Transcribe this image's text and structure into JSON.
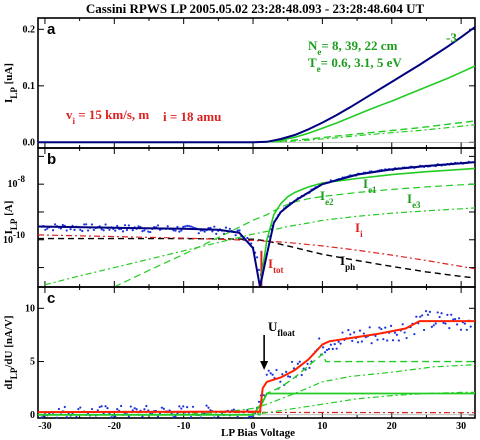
{
  "chart_data": {
    "type": "line",
    "title": "Cassini RPWS LP    2005.05.02   23:28:48.093 - 23:28:48.604 UT",
    "xlabel": "LP Bias Voltage",
    "xlim": [
      -31,
      32
    ],
    "xticks": [
      "-30",
      "-20",
      "-10",
      "0",
      "10",
      "20",
      "30"
    ],
    "colors": {
      "total": "#000080",
      "electron": "#22cc22",
      "ion": "#dd2222",
      "photo": "#000000",
      "data": "#1a33dd",
      "fit": "#ff2200"
    },
    "panels": [
      {
        "label": "a",
        "ylabel": "I_LP [uA]",
        "ylim": [
          -0.01,
          0.22
        ],
        "yticks": [
          "0.0",
          "0.1",
          "0.2"
        ],
        "annotations": [
          "Ne= 8, 39, 22 cm-3",
          "Te= 0.6, 3.1, 5 eV",
          "vi = 15 km/s, mi = 18 amu"
        ],
        "series": [
          {
            "name": "I_tot",
            "x": [
              -31,
              0,
              2,
              4,
              6,
              8,
              10,
              12,
              14,
              16,
              18,
              20,
              22,
              24,
              26,
              28,
              30,
              32
            ],
            "y": [
              0,
              0,
              0.001,
              0.006,
              0.013,
              0.023,
              0.035,
              0.048,
              0.062,
              0.077,
              0.092,
              0.107,
              0.122,
              0.137,
              0.153,
              0.169,
              0.186,
              0.204
            ]
          },
          {
            "name": "I_e1",
            "x": [
              -31,
              0,
              2,
              4,
              6,
              8,
              10,
              12,
              14,
              16,
              18,
              20,
              22,
              24,
              26,
              28,
              30,
              32
            ],
            "y": [
              0,
              0,
              0.001,
              0.004,
              0.009,
              0.016,
              0.025,
              0.034,
              0.044,
              0.054,
              0.064,
              0.073,
              0.083,
              0.093,
              0.103,
              0.113,
              0.124,
              0.135
            ]
          },
          {
            "name": "I_e2",
            "x": [
              -31,
              0,
              4,
              8,
              12,
              16,
              20,
              24,
              28,
              32
            ],
            "y": [
              0,
              0,
              0.002,
              0.006,
              0.011,
              0.016,
              0.021,
              0.026,
              0.032,
              0.038
            ]
          },
          {
            "name": "I_e3",
            "x": [
              -31,
              0,
              4,
              8,
              12,
              16,
              20,
              24,
              28,
              32
            ],
            "y": [
              0,
              0,
              0.001,
              0.004,
              0.008,
              0.013,
              0.017,
              0.021,
              0.026,
              0.031
            ]
          }
        ]
      },
      {
        "label": "b",
        "ylabel": "I_LP [A]",
        "yscale": "log",
        "ylim": [
          2e-12,
          2e-07
        ],
        "yticks": [
          "10-8",
          "10-10"
        ],
        "annotations": [
          "Ie1",
          "Ie2",
          "Ie3",
          "Ii",
          "Iph",
          "Itot"
        ],
        "series": [
          {
            "name": "I_tot",
            "x": [
              -31,
              -20,
              -10,
              -5,
              -2,
              0,
              1,
              2,
              3,
              4,
              6,
              8,
              10,
              15,
              20,
              25,
              30,
              32
            ],
            "y": [
              3e-10,
              2.7e-10,
              2.5e-10,
              2.3e-10,
              1.8e-10,
              5e-11,
              2e-12,
              3e-11,
              4e-10,
              1e-09,
              2.5e-09,
              5e-09,
              1e-08,
              2.2e-08,
              3.4e-08,
              4.5e-08,
              5.7e-08,
              6.2e-08
            ]
          },
          {
            "name": "I_e1",
            "x": [
              1,
              2,
              3,
              4,
              5,
              6,
              8,
              10,
              15,
              20,
              25,
              30,
              32
            ],
            "y": [
              2e-12,
              1e-10,
              8e-10,
              2e-09,
              3.5e-09,
              5e-09,
              8e-09,
              1.1e-08,
              1.6e-08,
              2.2e-08,
              2.8e-08,
              3.4e-08,
              3.7e-08
            ]
          },
          {
            "name": "I_e2",
            "x": [
              -20,
              -15,
              -10,
              -5,
              0,
              2,
              4,
              6,
              8,
              10,
              15,
              20,
              25,
              30,
              32
            ],
            "y": [
              2e-12,
              8e-12,
              3e-11,
              1.2e-10,
              5e-10,
              8e-10,
              1.5e-09,
              2.3e-09,
              3e-09,
              3.6e-09,
              5e-09,
              6.5e-09,
              8e-09,
              9.5e-09,
              1e-08
            ]
          },
          {
            "name": "I_e3",
            "x": [
              -30,
              -25,
              -20,
              -15,
              -10,
              -5,
              0,
              2,
              5,
              8,
              10,
              15,
              20,
              25,
              30,
              32
            ],
            "y": [
              2.4e-12,
              5e-12,
              1e-11,
              2e-11,
              4e-11,
              8e-11,
              1.6e-10,
              2e-10,
              3e-10,
              4e-10,
              5e-10,
              7e-10,
              9e-10,
              1.1e-09,
              1.3e-09,
              1.4e-09
            ]
          },
          {
            "name": "I_i",
            "x": [
              -31,
              -20,
              -10,
              0,
              5,
              10,
              15,
              20,
              25,
              30,
              32
            ],
            "y": [
              1.5e-10,
              1.3e-10,
              1.15e-10,
              9.5e-11,
              8e-11,
              6e-11,
              4.2e-11,
              2.8e-11,
              1.8e-11,
              1.1e-11,
              9e-12
            ]
          },
          {
            "name": "I_ph",
            "x": [
              -31,
              -20,
              -10,
              0,
              2,
              5,
              10,
              15,
              20,
              25,
              30,
              32
            ],
            "y": [
              1.1e-10,
              1.1e-10,
              1.1e-10,
              1.05e-10,
              9e-11,
              6e-11,
              3e-11,
              1.8e-11,
              1.1e-11,
              7e-12,
              4.8e-12,
              4.2e-12
            ]
          },
          {
            "name": "I_tot",
            "x": [
              1.2,
              1.2
            ],
            "y": [
              2e-12,
              4e-11
            ]
          }
        ]
      },
      {
        "label": "c",
        "ylabel": "dI_LP/dU [nA/V]",
        "ylim": [
          -0.3,
          12
        ],
        "yticks": [
          "0",
          "5",
          "10"
        ],
        "annotations": [
          "Ufloat"
        ],
        "series": [
          {
            "name": "fit",
            "x": [
              -31,
              1,
              1.4,
              2,
              4,
              6,
              8,
              10,
              11,
              14,
              18,
              22,
              24,
              32
            ],
            "y": [
              0.25,
              0.3,
              2.5,
              3.1,
              3.5,
              4.2,
              5.2,
              6.6,
              6.9,
              7.2,
              7.6,
              8.1,
              8.8,
              8.8
            ]
          },
          {
            "name": "e1",
            "x": [
              -31,
              1,
              1.4,
              2,
              4,
              6,
              8,
              10,
              10.5,
              32
            ],
            "y": [
              0,
              0,
              1.5,
              2.0,
              2.6,
              3.5,
              4.6,
              5.7,
              5.0,
              5.0
            ]
          },
          {
            "name": "e2",
            "x": [
              -31,
              -10,
              -5,
              0,
              2,
              6,
              10,
              14,
              20,
              26,
              32
            ],
            "y": [
              0,
              0.05,
              0.2,
              0.6,
              1.0,
              2.0,
              3.1,
              3.6,
              4.0,
              4.5,
              4.7
            ]
          },
          {
            "name": "e3",
            "x": [
              -31,
              0,
              1.4,
              2,
              32
            ],
            "y": [
              0,
              0,
              1.2,
              2.0,
              2.0
            ]
          },
          {
            "name": "e4",
            "x": [
              -31,
              -10,
              0,
              2,
              5,
              10,
              15,
              20,
              25,
              30,
              32
            ],
            "y": [
              0,
              0,
              0.05,
              0.2,
              0.5,
              1.0,
              1.5,
              1.8,
              2.0,
              2.1,
              2.1
            ]
          },
          {
            "name": "i",
            "x": [
              -31,
              32
            ],
            "y": [
              0.25,
              0.2
            ]
          }
        ]
      }
    ]
  }
}
